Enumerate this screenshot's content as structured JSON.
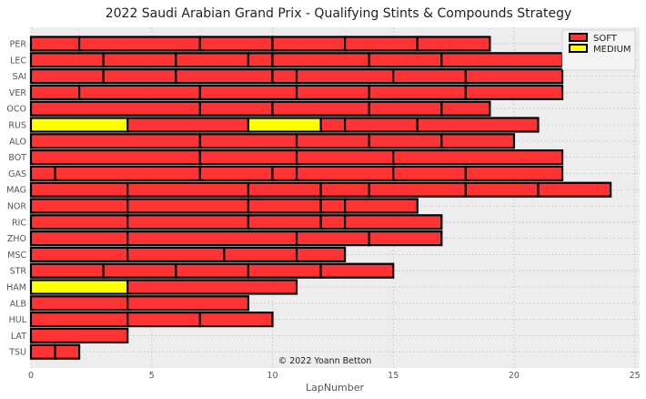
{
  "chart_data": {
    "type": "bar",
    "orientation": "horizontal-stacked",
    "title": "2022 Saudi Arabian Grand Prix - Qualifying Stints & Compounds Strategy",
    "xlabel": "LapNumber",
    "ylabel": "",
    "xlim": [
      0,
      25.2
    ],
    "xticks": [
      0,
      5,
      10,
      15,
      20,
      25
    ],
    "grid": true,
    "legend_position": "top-right",
    "credit": "© 2022 Yoann Betton",
    "compounds": [
      {
        "name": "SOFT",
        "color": "#ff3333"
      },
      {
        "name": "MEDIUM",
        "color": "#ffff00"
      }
    ],
    "drivers": [
      {
        "driver": "PER",
        "stints": [
          {
            "compound": "SOFT",
            "laps": 2
          },
          {
            "compound": "SOFT",
            "laps": 5
          },
          {
            "compound": "SOFT",
            "laps": 3
          },
          {
            "compound": "SOFT",
            "laps": 3
          },
          {
            "compound": "SOFT",
            "laps": 3
          },
          {
            "compound": "SOFT",
            "laps": 3
          }
        ]
      },
      {
        "driver": "LEC",
        "stints": [
          {
            "compound": "SOFT",
            "laps": 3
          },
          {
            "compound": "SOFT",
            "laps": 3
          },
          {
            "compound": "SOFT",
            "laps": 3
          },
          {
            "compound": "SOFT",
            "laps": 1
          },
          {
            "compound": "SOFT",
            "laps": 4
          },
          {
            "compound": "SOFT",
            "laps": 3
          },
          {
            "compound": "SOFT",
            "laps": 5
          }
        ]
      },
      {
        "driver": "SAI",
        "stints": [
          {
            "compound": "SOFT",
            "laps": 3
          },
          {
            "compound": "SOFT",
            "laps": 3
          },
          {
            "compound": "SOFT",
            "laps": 4
          },
          {
            "compound": "SOFT",
            "laps": 1
          },
          {
            "compound": "SOFT",
            "laps": 4
          },
          {
            "compound": "SOFT",
            "laps": 3
          },
          {
            "compound": "SOFT",
            "laps": 4
          }
        ]
      },
      {
        "driver": "VER",
        "stints": [
          {
            "compound": "SOFT",
            "laps": 2
          },
          {
            "compound": "SOFT",
            "laps": 5
          },
          {
            "compound": "SOFT",
            "laps": 4
          },
          {
            "compound": "SOFT",
            "laps": 3
          },
          {
            "compound": "SOFT",
            "laps": 4
          },
          {
            "compound": "SOFT",
            "laps": 4
          }
        ]
      },
      {
        "driver": "OCO",
        "stints": [
          {
            "compound": "SOFT",
            "laps": 7
          },
          {
            "compound": "SOFT",
            "laps": 3
          },
          {
            "compound": "SOFT",
            "laps": 4
          },
          {
            "compound": "SOFT",
            "laps": 3
          },
          {
            "compound": "SOFT",
            "laps": 2
          }
        ]
      },
      {
        "driver": "RUS",
        "stints": [
          {
            "compound": "MEDIUM",
            "laps": 4
          },
          {
            "compound": "SOFT",
            "laps": 5
          },
          {
            "compound": "MEDIUM",
            "laps": 3
          },
          {
            "compound": "SOFT",
            "laps": 1
          },
          {
            "compound": "SOFT",
            "laps": 3
          },
          {
            "compound": "SOFT",
            "laps": 5
          }
        ]
      },
      {
        "driver": "ALO",
        "stints": [
          {
            "compound": "SOFT",
            "laps": 7
          },
          {
            "compound": "SOFT",
            "laps": 4
          },
          {
            "compound": "SOFT",
            "laps": 3
          },
          {
            "compound": "SOFT",
            "laps": 3
          },
          {
            "compound": "SOFT",
            "laps": 3
          }
        ]
      },
      {
        "driver": "BOT",
        "stints": [
          {
            "compound": "SOFT",
            "laps": 7
          },
          {
            "compound": "SOFT",
            "laps": 4
          },
          {
            "compound": "SOFT",
            "laps": 4
          },
          {
            "compound": "SOFT",
            "laps": 7
          }
        ]
      },
      {
        "driver": "GAS",
        "stints": [
          {
            "compound": "SOFT",
            "laps": 1
          },
          {
            "compound": "SOFT",
            "laps": 6
          },
          {
            "compound": "SOFT",
            "laps": 3
          },
          {
            "compound": "SOFT",
            "laps": 1
          },
          {
            "compound": "SOFT",
            "laps": 4
          },
          {
            "compound": "SOFT",
            "laps": 3
          },
          {
            "compound": "SOFT",
            "laps": 4
          }
        ]
      },
      {
        "driver": "MAG",
        "stints": [
          {
            "compound": "SOFT",
            "laps": 4
          },
          {
            "compound": "SOFT",
            "laps": 5
          },
          {
            "compound": "SOFT",
            "laps": 3
          },
          {
            "compound": "SOFT",
            "laps": 2
          },
          {
            "compound": "SOFT",
            "laps": 4
          },
          {
            "compound": "SOFT",
            "laps": 3
          },
          {
            "compound": "SOFT",
            "laps": 3
          }
        ]
      },
      {
        "driver": "NOR",
        "stints": [
          {
            "compound": "SOFT",
            "laps": 4
          },
          {
            "compound": "SOFT",
            "laps": 5
          },
          {
            "compound": "SOFT",
            "laps": 3
          },
          {
            "compound": "SOFT",
            "laps": 1
          },
          {
            "compound": "SOFT",
            "laps": 3
          }
        ]
      },
      {
        "driver": "RIC",
        "stints": [
          {
            "compound": "SOFT",
            "laps": 4
          },
          {
            "compound": "SOFT",
            "laps": 5
          },
          {
            "compound": "SOFT",
            "laps": 3
          },
          {
            "compound": "SOFT",
            "laps": 1
          },
          {
            "compound": "SOFT",
            "laps": 4
          }
        ]
      },
      {
        "driver": "ZHO",
        "stints": [
          {
            "compound": "SOFT",
            "laps": 4
          },
          {
            "compound": "SOFT",
            "laps": 7
          },
          {
            "compound": "SOFT",
            "laps": 3
          },
          {
            "compound": "SOFT",
            "laps": 3
          }
        ]
      },
      {
        "driver": "MSC",
        "stints": [
          {
            "compound": "SOFT",
            "laps": 4
          },
          {
            "compound": "SOFT",
            "laps": 4
          },
          {
            "compound": "SOFT",
            "laps": 3
          },
          {
            "compound": "SOFT",
            "laps": 2
          }
        ]
      },
      {
        "driver": "STR",
        "stints": [
          {
            "compound": "SOFT",
            "laps": 3
          },
          {
            "compound": "SOFT",
            "laps": 3
          },
          {
            "compound": "SOFT",
            "laps": 3
          },
          {
            "compound": "SOFT",
            "laps": 3
          },
          {
            "compound": "SOFT",
            "laps": 3
          }
        ]
      },
      {
        "driver": "HAM",
        "stints": [
          {
            "compound": "MEDIUM",
            "laps": 4
          },
          {
            "compound": "SOFT",
            "laps": 7
          }
        ]
      },
      {
        "driver": "ALB",
        "stints": [
          {
            "compound": "SOFT",
            "laps": 4
          },
          {
            "compound": "SOFT",
            "laps": 5
          }
        ]
      },
      {
        "driver": "HUL",
        "stints": [
          {
            "compound": "SOFT",
            "laps": 4
          },
          {
            "compound": "SOFT",
            "laps": 3
          },
          {
            "compound": "SOFT",
            "laps": 3
          }
        ]
      },
      {
        "driver": "LAT",
        "stints": [
          {
            "compound": "SOFT",
            "laps": 4
          }
        ]
      },
      {
        "driver": "TSU",
        "stints": [
          {
            "compound": "SOFT",
            "laps": 1
          },
          {
            "compound": "SOFT",
            "laps": 1
          }
        ]
      }
    ]
  }
}
